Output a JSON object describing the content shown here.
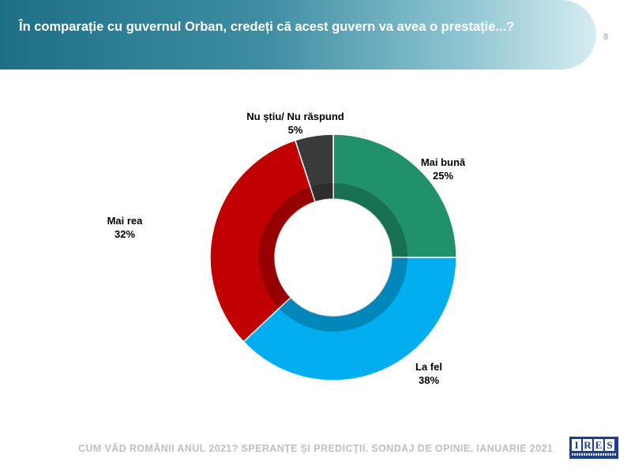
{
  "header": {
    "title": "În comparație cu guvernul Orban, credeți că acest guvern va avea o prestație...?",
    "page_number": "8"
  },
  "chart_data": {
    "type": "pie",
    "variant": "donut",
    "title": "",
    "slices": [
      {
        "label": "Mai bună",
        "value": 25,
        "value_label": "25%",
        "color": "#21916b"
      },
      {
        "label": "La fel",
        "value": 38,
        "value_label": "38%",
        "color": "#02aeef"
      },
      {
        "label": "Mai rea",
        "value": 32,
        "value_label": "32%",
        "color": "#c00000"
      },
      {
        "label": "Nu știu/ Nu răspund",
        "value": 5,
        "value_label": "5%",
        "color": "#3a3a3a"
      }
    ],
    "start_angle": "12 o'clock",
    "direction": "clockwise"
  },
  "footer": {
    "text": "CUM VĂD ROMÂNII ANUL 2021? SPERANȚE ȘI PREDICȚII. SONDAJ DE OPINIE. IANUARIE 2021"
  },
  "logo": {
    "letters": [
      "I",
      "R",
      "E",
      "S"
    ]
  }
}
